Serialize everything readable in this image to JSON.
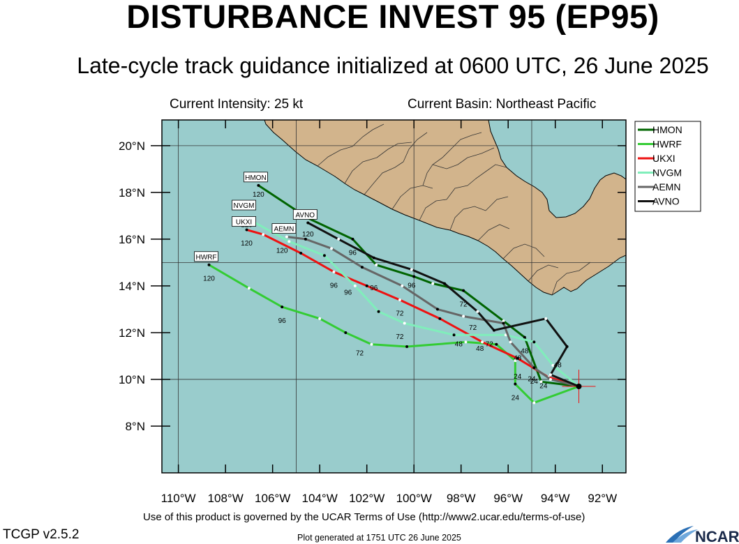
{
  "header": {
    "title": "DISTURBANCE INVEST 95 (EP95)",
    "subtitle": "Late-cycle track guidance initialized at 0600 UTC, 26 June 2025",
    "intensity": "Current Intensity: 25 kt",
    "basin": "Current Basin: Northeast Pacific"
  },
  "footer": {
    "terms": "Use of this product is governed by the UCAR Terms of Use (http://www2.ucar.edu/terms-of-use)",
    "version": "TCGP v2.5.2",
    "generated": "Plot generated at 1751 UTC   26 June 2025",
    "logo_text": "NCAR"
  },
  "map": {
    "lon_range": [
      -110.7,
      -91
    ],
    "lat_range": [
      6,
      21.1
    ],
    "lon_ticks": [
      -110,
      -108,
      -106,
      -104,
      -102,
      -100,
      -98,
      -96,
      -94,
      -92
    ],
    "lon_tick_labels": [
      "110°W",
      "108°W",
      "106°W",
      "104°W",
      "102°W",
      "100°W",
      "98°W",
      "96°W",
      "94°W",
      "92°W"
    ],
    "lat_ticks": [
      8,
      10,
      12,
      14,
      16,
      18,
      20
    ],
    "lat_tick_labels": [
      "8°N",
      "10°N",
      "12°N",
      "14°N",
      "16°N",
      "18°N",
      "20°N"
    ],
    "gridlines_lon": [
      -110,
      -105,
      -100,
      -95
    ],
    "gridlines_lat": [
      10,
      15,
      20
    ],
    "ocean_color": "#99cccc",
    "land_color": "#d2b48c",
    "current_position": {
      "lon": -93.0,
      "lat": 9.7
    }
  },
  "chart_data": {
    "type": "track-map",
    "legend_position": "top-right",
    "series": [
      {
        "name": "HMON",
        "color": "#006400",
        "points": [
          [
            -93.0,
            9.7
          ],
          [
            -94.6,
            9.9
          ],
          [
            -95.3,
            11.8
          ],
          [
            -96.2,
            12.5
          ],
          [
            -97.9,
            13.8
          ],
          [
            -99.2,
            14.1
          ],
          [
            -100.0,
            14.4
          ],
          [
            -101.6,
            14.9
          ],
          [
            -102.6,
            16.0
          ],
          [
            -104.5,
            16.9
          ],
          [
            -106.6,
            18.3
          ]
        ],
        "labels": [
          {
            "text": "96",
            "lon": -102.6,
            "lat": 15.8
          },
          {
            "text": "72",
            "lon": -97.9,
            "lat": 13.6
          },
          {
            "text": "48",
            "lon": -95.3,
            "lat": 11.6
          },
          {
            "text": "120",
            "lon": -106.6,
            "lat": 18.3
          }
        ]
      },
      {
        "name": "HWRF",
        "color": "#33cc33",
        "points": [
          [
            -93.0,
            9.7
          ],
          [
            -94.9,
            9.0
          ],
          [
            -95.7,
            9.8
          ],
          [
            -95.7,
            10.8
          ],
          [
            -96.5,
            11.5
          ],
          [
            -97.8,
            11.6
          ],
          [
            -100.3,
            11.4
          ],
          [
            -101.8,
            11.5
          ],
          [
            -102.9,
            12.0
          ],
          [
            -104.0,
            12.6
          ],
          [
            -105.6,
            13.1
          ],
          [
            -107.0,
            13.9
          ],
          [
            -108.7,
            14.9
          ]
        ],
        "labels": [
          {
            "text": "24",
            "lon": -95.7,
            "lat": 9.6
          },
          {
            "text": "72",
            "lon": -102.3,
            "lat": 11.5
          },
          {
            "text": "96",
            "lon": -105.6,
            "lat": 12.9
          },
          {
            "text": "120",
            "lon": -108.7,
            "lat": 14.7
          }
        ]
      },
      {
        "name": "UKXI",
        "color": "#ee1111",
        "points": [
          [
            -93.0,
            9.7
          ],
          [
            -94.3,
            10.1
          ],
          [
            -95.6,
            10.9
          ],
          [
            -97.1,
            11.6
          ],
          [
            -98.9,
            12.6
          ],
          [
            -100.6,
            13.4
          ],
          [
            -102.0,
            14.0
          ],
          [
            -103.4,
            14.6
          ],
          [
            -104.8,
            15.4
          ],
          [
            -106.4,
            16.2
          ],
          [
            -107.1,
            16.4
          ]
        ],
        "labels": [
          {
            "text": "24",
            "lon": -95.6,
            "lat": 10.5
          },
          {
            "text": "48",
            "lon": -97.2,
            "lat": 11.7
          },
          {
            "text": "72",
            "lon": -100.6,
            "lat": 13.2
          },
          {
            "text": "96",
            "lon": -103.4,
            "lat": 14.4
          },
          {
            "text": "120",
            "lon": -107.1,
            "lat": 16.2
          }
        ]
      },
      {
        "name": "NVGM",
        "color": "#80eebb",
        "points": [
          [
            -93.0,
            9.7
          ],
          [
            -94.1,
            10.6
          ],
          [
            -94.9,
            11.6
          ],
          [
            -96.1,
            11.9
          ],
          [
            -98.3,
            11.9
          ],
          [
            -100.4,
            12.4
          ],
          [
            -101.5,
            12.9
          ],
          [
            -102.5,
            14.0
          ],
          [
            -103.8,
            15.3
          ],
          [
            -105.3,
            15.9
          ],
          [
            -107.1,
            16.9
          ]
        ],
        "labels": [
          {
            "text": "24",
            "lon": -94.5,
            "lat": 10.1
          },
          {
            "text": "48",
            "lon": -98.1,
            "lat": 11.9
          },
          {
            "text": "72",
            "lon": -100.6,
            "lat": 12.2
          },
          {
            "text": "96",
            "lon": -102.8,
            "lat": 14.1
          },
          {
            "text": "120",
            "lon": -107.1,
            "lat": 17.0
          }
        ]
      },
      {
        "name": "AEMN",
        "color": "#666666",
        "points": [
          [
            -93.0,
            9.7
          ],
          [
            -94.2,
            10.0
          ],
          [
            -94.9,
            10.5
          ],
          [
            -95.9,
            11.6
          ],
          [
            -96.2,
            12.4
          ],
          [
            -97.9,
            12.7
          ],
          [
            -99.0,
            13.0
          ],
          [
            -100.5,
            14.0
          ],
          [
            -102.2,
            14.8
          ],
          [
            -103.5,
            15.6
          ],
          [
            -104.6,
            16.0
          ],
          [
            -105.4,
            16.1
          ]
        ],
        "labels": [
          {
            "text": "24",
            "lon": -94.9,
            "lat": 10.3
          },
          {
            "text": "48",
            "lon": -95.6,
            "lat": 11.3
          },
          {
            "text": "72",
            "lon": -97.5,
            "lat": 12.6
          },
          {
            "text": "96",
            "lon": -101.7,
            "lat": 14.3
          },
          {
            "text": "120",
            "lon": -105.6,
            "lat": 15.9
          }
        ]
      },
      {
        "name": "AVNO",
        "color": "#111111",
        "points": [
          [
            -93.0,
            9.7
          ],
          [
            -94.2,
            10.2
          ],
          [
            -93.5,
            11.4
          ],
          [
            -94.4,
            12.6
          ],
          [
            -96.6,
            12.1
          ],
          [
            -97.3,
            12.9
          ],
          [
            -98.7,
            14.1
          ],
          [
            -100.1,
            14.7
          ],
          [
            -101.7,
            15.2
          ],
          [
            -103.2,
            16.0
          ],
          [
            -104.5,
            16.7
          ]
        ],
        "labels": [
          {
            "text": "24",
            "lon": -95.0,
            "lat": 10.4
          },
          {
            "text": "48",
            "lon": -93.9,
            "lat": 11.0
          },
          {
            "text": "72",
            "lon": -96.8,
            "lat": 11.9
          },
          {
            "text": "96",
            "lon": -100.1,
            "lat": 14.4
          },
          {
            "text": "120",
            "lon": -104.5,
            "lat": 16.6
          }
        ]
      }
    ],
    "end_labels": [
      {
        "text": "HMON",
        "lon": -106.6,
        "lat": 18.3
      },
      {
        "text": "NVGM",
        "lon": -107.1,
        "lat": 17.1
      },
      {
        "text": "UKXI",
        "lon": -107.1,
        "lat": 16.4
      },
      {
        "text": "AEMN",
        "lon": -105.4,
        "lat": 16.1
      },
      {
        "text": "AVNO",
        "lon": -104.5,
        "lat": 16.7
      },
      {
        "text": "HWRF",
        "lon": -108.7,
        "lat": 14.9
      }
    ]
  }
}
